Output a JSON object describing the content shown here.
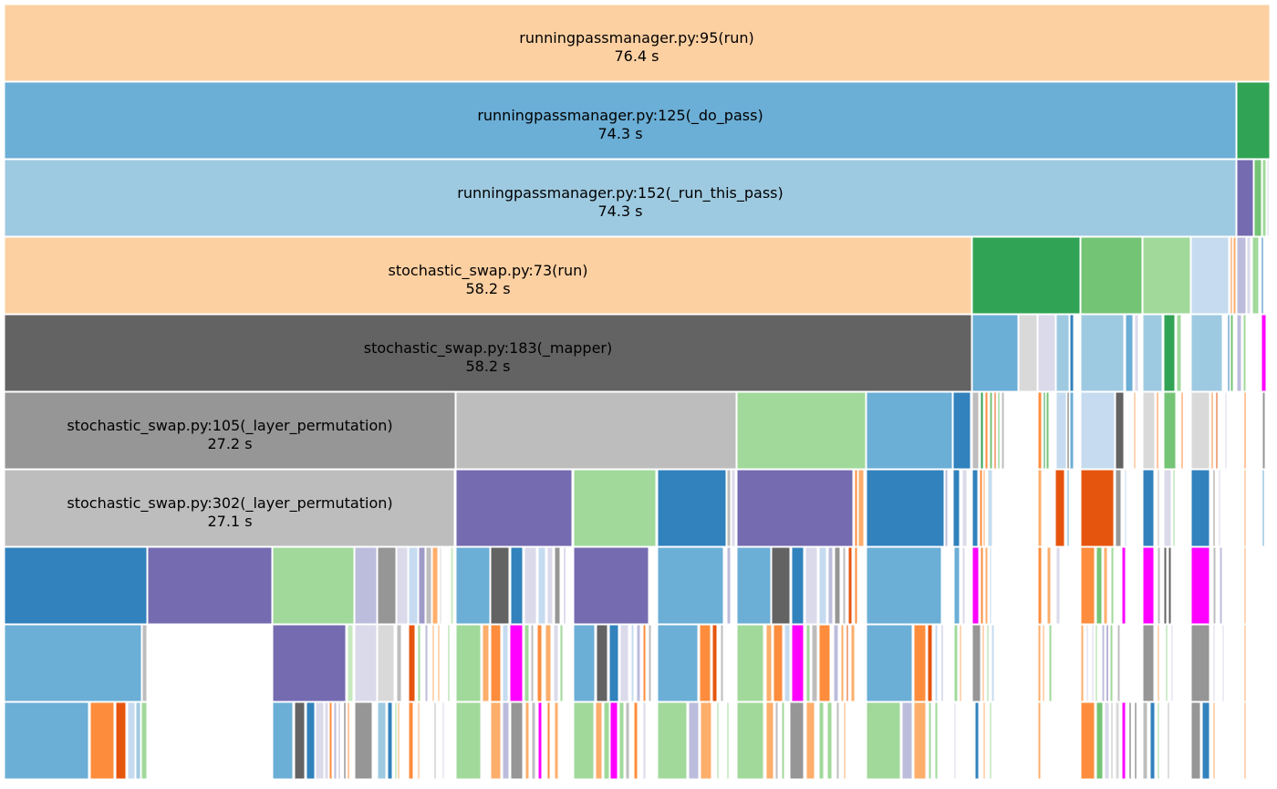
{
  "chart_data": {
    "type": "icicle",
    "frames": [
      {
        "name": "runningpassmanager.py:95(run)",
        "time": "76.4 s",
        "depth": 0
      },
      {
        "name": "runningpassmanager.py:125(_do_pass)",
        "time": "74.3 s",
        "depth": 1
      },
      {
        "name": "runningpassmanager.py:152(_run_this_pass)",
        "time": "74.3 s",
        "depth": 2
      },
      {
        "name": "stochastic_swap.py:73(run)",
        "time": "58.2 s",
        "depth": 3
      },
      {
        "name": "stochastic_swap.py:183(_mapper)",
        "time": "58.2 s",
        "depth": 4
      },
      {
        "name": "stochastic_swap.py:105(_layer_permutation)",
        "time": "27.2 s",
        "depth": 5
      },
      {
        "name": "stochastic_swap.py:302(_layer_permutation)",
        "time": "27.1 s",
        "depth": 6
      }
    ],
    "colors": {
      "peach": "#fdd0a2",
      "blue": "#6baed6",
      "lightblue": "#9ecae1",
      "darkgray": "#636363",
      "gray": "#969696",
      "lightgray": "#bdbdbd",
      "green": "#31a354",
      "medgreen": "#74c476",
      "lightgreen": "#a1d99b",
      "palegreen": "#c7e9c0",
      "lightsteel": "#c6dbef",
      "purple": "#756bb1",
      "midpurple": "#9e9ac8",
      "lavender": "#bcbddc",
      "pale": "#dadaeb",
      "darkblue": "#3182bd",
      "orange": "#fd8d3c",
      "darkorange": "#e6550d",
      "lightorange": "#fdae6b",
      "magenta": "#ff00ff",
      "vlightgray": "#d9d9d9"
    }
  }
}
